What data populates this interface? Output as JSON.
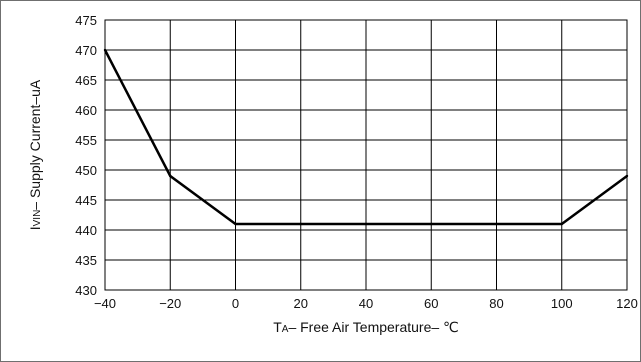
{
  "chart_data": {
    "type": "line",
    "title": "",
    "xlabel": {
      "main": "T",
      "sub": "A",
      "rest": "– Free Air Temperature– ℃"
    },
    "ylabel": {
      "main": "I",
      "sub": "VIN",
      "rest": "– Supply Current–uA"
    },
    "xlim": [
      -40,
      120
    ],
    "ylim": [
      430,
      475
    ],
    "xticks": [
      -40,
      -20,
      0,
      20,
      40,
      60,
      80,
      100,
      120
    ],
    "xtick_labels": [
      "−40",
      "−20",
      "0",
      "20",
      "40",
      "60",
      "80",
      "100",
      "120"
    ],
    "yticks": [
      430,
      435,
      440,
      445,
      450,
      455,
      460,
      465,
      470,
      475
    ],
    "yticks_labels": [
      "430",
      "435",
      "440",
      "445",
      "450",
      "455",
      "460",
      "465",
      "470",
      "475"
    ],
    "grid": true,
    "series": [
      {
        "x": [
          -40,
          -20,
          0,
          20,
          40,
          60,
          80,
          100,
          120
        ],
        "y": [
          470,
          449,
          441,
          441,
          441,
          441,
          441,
          441,
          449
        ],
        "color": "#000000"
      }
    ]
  }
}
